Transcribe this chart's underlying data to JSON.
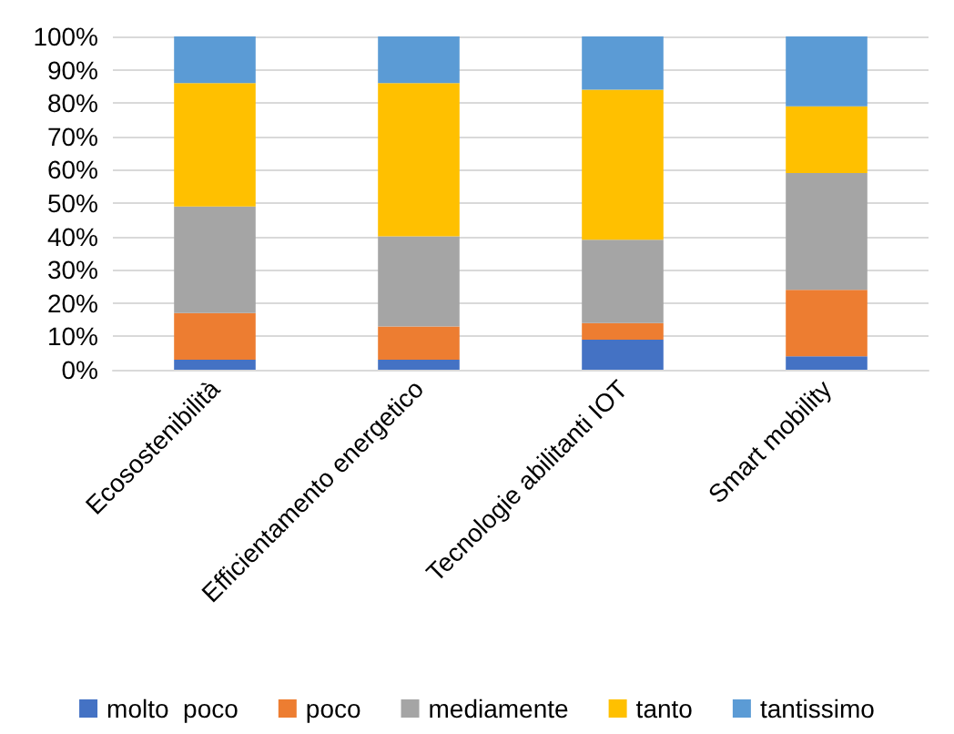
{
  "chart_data": {
    "type": "bar",
    "stacked": true,
    "categories": [
      "Ecosostenibilità",
      "Efficientamento energetico",
      "Tecnologie abilitanti IOT",
      "Smart mobility"
    ],
    "series": [
      {
        "name": "molto  poco",
        "color": "#4472c4",
        "values": [
          3,
          3,
          9,
          4
        ]
      },
      {
        "name": "poco",
        "color": "#ed7d31",
        "values": [
          14,
          10,
          5,
          20
        ]
      },
      {
        "name": "mediamente",
        "color": "#a5a5a5",
        "values": [
          32,
          27,
          25,
          35
        ]
      },
      {
        "name": "tanto",
        "color": "#ffc000",
        "values": [
          37,
          46,
          45,
          20
        ]
      },
      {
        "name": "tantissimo",
        "color": "#5b9bd5",
        "values": [
          14,
          14,
          16,
          21
        ]
      }
    ],
    "ylim": [
      0,
      100
    ],
    "yticks": [
      {
        "value": 0,
        "label": "0%"
      },
      {
        "value": 10,
        "label": "10%"
      },
      {
        "value": 20,
        "label": "20%"
      },
      {
        "value": 30,
        "label": "30%"
      },
      {
        "value": 40,
        "label": "40%"
      },
      {
        "value": 50,
        "label": "50%"
      },
      {
        "value": 60,
        "label": "60%"
      },
      {
        "value": 70,
        "label": "70%"
      },
      {
        "value": 80,
        "label": "80%"
      },
      {
        "value": 90,
        "label": "90%"
      },
      {
        "value": 100,
        "label": "100%"
      }
    ],
    "grid": "y",
    "legend": "bottom"
  }
}
